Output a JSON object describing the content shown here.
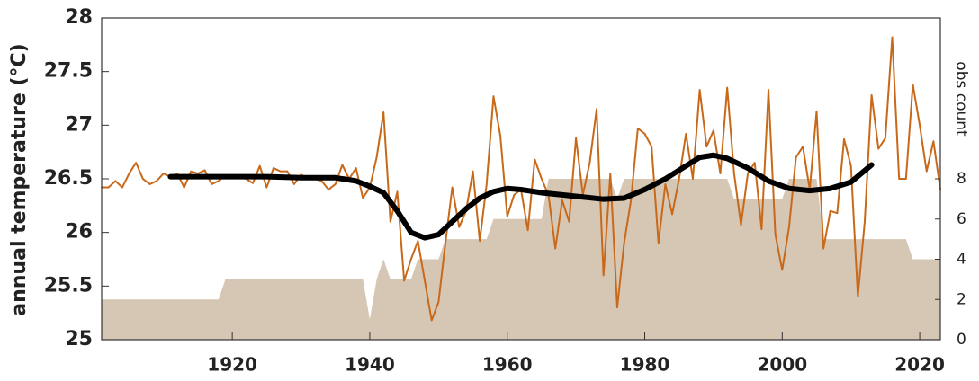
{
  "chart_data": {
    "type": "line",
    "y_label": "annual temperature (°C)",
    "y2_label": "obs count",
    "xlim": [
      1901,
      2023
    ],
    "xticks": [
      1920,
      1940,
      1960,
      1980,
      2000,
      2020
    ],
    "ylim": [
      25,
      28
    ],
    "yticks": [
      25,
      25.5,
      26,
      26.5,
      27,
      27.5,
      28
    ],
    "y2lim": [
      0,
      16
    ],
    "y2ticks": [
      0,
      2,
      4,
      6,
      8
    ],
    "x": [
      1901,
      1902,
      1903,
      1904,
      1905,
      1906,
      1907,
      1908,
      1909,
      1910,
      1911,
      1912,
      1913,
      1914,
      1915,
      1916,
      1917,
      1918,
      1919,
      1920,
      1921,
      1922,
      1923,
      1924,
      1925,
      1926,
      1927,
      1928,
      1929,
      1930,
      1931,
      1932,
      1933,
      1934,
      1935,
      1936,
      1937,
      1938,
      1939,
      1940,
      1941,
      1942,
      1943,
      1944,
      1945,
      1946,
      1947,
      1948,
      1949,
      1950,
      1951,
      1952,
      1953,
      1954,
      1955,
      1956,
      1957,
      1958,
      1959,
      1960,
      1961,
      1962,
      1963,
      1964,
      1965,
      1966,
      1967,
      1968,
      1969,
      1970,
      1971,
      1972,
      1973,
      1974,
      1975,
      1976,
      1977,
      1978,
      1979,
      1980,
      1981,
      1982,
      1983,
      1984,
      1985,
      1986,
      1987,
      1988,
      1989,
      1990,
      1991,
      1992,
      1993,
      1994,
      1995,
      1996,
      1997,
      1998,
      1999,
      2000,
      2001,
      2002,
      2003,
      2004,
      2005,
      2006,
      2007,
      2008,
      2009,
      2010,
      2011,
      2012,
      2013,
      2014,
      2015,
      2016,
      2017,
      2018,
      2019,
      2020,
      2021,
      2022,
      2023
    ],
    "series": [
      {
        "type": "area",
        "axis": "y2",
        "color": "#d6c7b4",
        "values": [
          2,
          2,
          2,
          2,
          2,
          2,
          2,
          2,
          2,
          2,
          2,
          2,
          2,
          2,
          2,
          2,
          2,
          2,
          3,
          3,
          3,
          3,
          3,
          3,
          3,
          3,
          3,
          3,
          3,
          3,
          3,
          3,
          3,
          3,
          3,
          3,
          3,
          3,
          3,
          1,
          3,
          4,
          3,
          3,
          3,
          3,
          4,
          4,
          4,
          4,
          5,
          5,
          5,
          5,
          5,
          5,
          5,
          6,
          6,
          6,
          6,
          6,
          6,
          6,
          6,
          8,
          8,
          8,
          8,
          8,
          8,
          8,
          8,
          8,
          8,
          7,
          8,
          8,
          8,
          8,
          8,
          8,
          8,
          8,
          8,
          8,
          8,
          8,
          8,
          8,
          8,
          8,
          7,
          7,
          7,
          7,
          7,
          7,
          7,
          7,
          8,
          8,
          8,
          8,
          8,
          5,
          5,
          5,
          5,
          5,
          5,
          5,
          5,
          5,
          5,
          5,
          5,
          5,
          4,
          4,
          4,
          4,
          4
        ]
      },
      {
        "type": "line",
        "axis": "y",
        "color": "#c8691a",
        "width": 2,
        "values": [
          26.42,
          26.42,
          26.48,
          26.42,
          26.55,
          26.65,
          26.5,
          26.45,
          26.48,
          26.55,
          26.52,
          26.55,
          26.42,
          26.57,
          26.55,
          26.58,
          26.45,
          26.48,
          26.53,
          26.53,
          26.52,
          26.5,
          26.46,
          26.62,
          26.42,
          26.6,
          26.57,
          26.57,
          26.45,
          26.54,
          26.5,
          26.5,
          26.48,
          26.4,
          26.45,
          26.63,
          26.5,
          26.6,
          26.32,
          26.42,
          26.7,
          27.12,
          26.1,
          26.38,
          25.55,
          25.75,
          25.92,
          25.55,
          25.18,
          25.35,
          25.9,
          26.42,
          26.05,
          26.2,
          26.57,
          25.92,
          26.45,
          27.27,
          26.9,
          26.15,
          26.35,
          26.4,
          26.02,
          26.68,
          26.5,
          26.35,
          25.85,
          26.3,
          26.1,
          26.88,
          26.35,
          26.65,
          27.15,
          25.6,
          26.55,
          25.3,
          25.9,
          26.3,
          26.97,
          26.92,
          26.8,
          25.9,
          26.45,
          26.17,
          26.5,
          26.92,
          26.5,
          27.33,
          26.8,
          26.95,
          26.55,
          27.35,
          26.55,
          26.07,
          26.55,
          26.65,
          26.03,
          27.33,
          25.98,
          25.65,
          26.05,
          26.7,
          26.8,
          26.4,
          27.13,
          25.85,
          26.2,
          26.18,
          26.87,
          26.62,
          25.4,
          26.1,
          27.28,
          26.78,
          26.88,
          27.82,
          26.5,
          26.5,
          27.38,
          27.0,
          26.57,
          26.85,
          26.4
        ]
      },
      {
        "type": "line",
        "axis": "y",
        "color": "#000000",
        "width": 6,
        "x": [
          1911,
          1915,
          1920,
          1925,
          1930,
          1935,
          1938,
          1940,
          1942,
          1944,
          1946,
          1948,
          1950,
          1952,
          1954,
          1956,
          1958,
          1960,
          1962,
          1965,
          1968,
          1971,
          1974,
          1977,
          1980,
          1983,
          1986,
          1988,
          1990,
          1992,
          1995,
          1998,
          2001,
          2004,
          2007,
          2010,
          2013
        ],
        "values": [
          26.52,
          26.52,
          26.52,
          26.52,
          26.51,
          26.51,
          26.48,
          26.43,
          26.37,
          26.2,
          26.0,
          25.95,
          25.98,
          26.1,
          26.22,
          26.32,
          26.38,
          26.41,
          26.4,
          26.37,
          26.35,
          26.33,
          26.31,
          26.32,
          26.4,
          26.5,
          26.62,
          26.7,
          26.72,
          26.69,
          26.6,
          26.48,
          26.41,
          26.39,
          26.41,
          26.47,
          26.63
        ]
      }
    ]
  }
}
